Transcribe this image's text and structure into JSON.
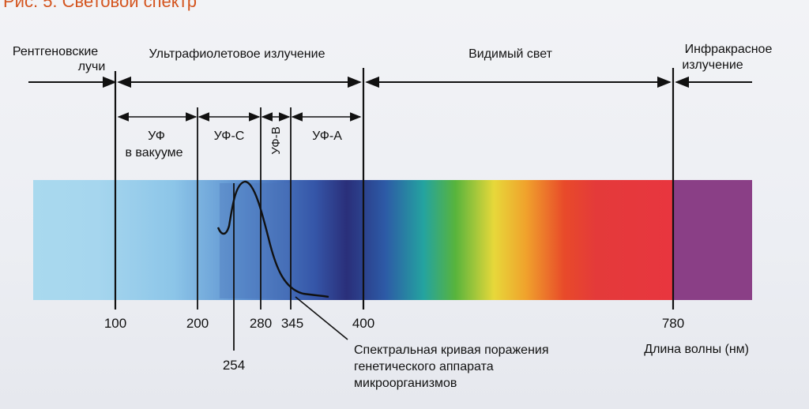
{
  "header": {
    "title": "Рис. 5. Световой спектр"
  },
  "regions": {
    "xray_line1": "Рентгеновские",
    "xray_line2": "лучи",
    "uv": "Ультрафиолетовое излучение",
    "visible": "Видимый свет",
    "ir_line1": "Инфракрасное",
    "ir_line2": "излучение"
  },
  "subregions": {
    "uf_vacuum_line1": "УФ",
    "uf_vacuum_line2": "в вакууме",
    "uf_c": "УФ-С",
    "uf_b": "УФ-В",
    "uf_a": "УФ-А"
  },
  "axis": {
    "ticks": [
      "100",
      "200",
      "280",
      "345",
      "400",
      "780"
    ],
    "peak": "254",
    "unit_label": "Длина волны (нм)"
  },
  "curve_label": {
    "line1": "Спектральная кривая поражения",
    "line2": "генетического аппарата",
    "line3": "микроорганизмов"
  },
  "colors": {
    "uv_band": "#8fcde8",
    "ir_band": "#8a3f86",
    "header": "#d4551f"
  }
}
